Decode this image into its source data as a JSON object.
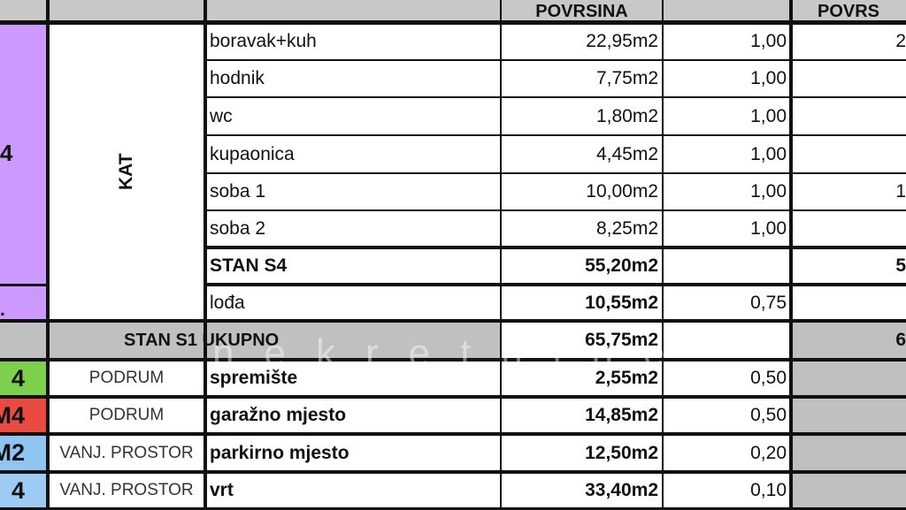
{
  "header": {
    "col_povrsina": "POVRSINA",
    "col_povrsina_partial": "POVRS"
  },
  "colors": {
    "header_bg": "#c8c8c8",
    "purple": "#cc99ff",
    "green": "#7dcf4e",
    "red": "#ea4a42",
    "blue": "#8fc5f0",
    "light_blue": "#9ecbf2",
    "total_bg": "#c0c0c0"
  },
  "group": {
    "etaza": "KAT",
    "stan_label": "4",
    "stan_label2": "."
  },
  "rooms": [
    {
      "name": "boravak+kuh",
      "area": "22,95m2",
      "coef": "1,00",
      "net": "2"
    },
    {
      "name": "hodnik",
      "area": "7,75m2",
      "coef": "1,00",
      "net": ""
    },
    {
      "name": "wc",
      "area": "1,80m2",
      "coef": "1,00",
      "net": ""
    },
    {
      "name": "kupaonica",
      "area": "4,45m2",
      "coef": "1,00",
      "net": ""
    },
    {
      "name": "soba 1",
      "area": "10,00m2",
      "coef": "1,00",
      "net": "1"
    },
    {
      "name": "soba 2",
      "area": "8,25m2",
      "coef": "1,00",
      "net": ""
    },
    {
      "name": "STAN S4",
      "area": "55,20m2",
      "coef": "",
      "net": "5"
    },
    {
      "name": "lođa",
      "area": "10,55m2",
      "coef": "0,75",
      "net": ""
    }
  ],
  "total": {
    "label": "STAN S1 UKUPNO",
    "area": "65,75m2",
    "coef": "",
    "net": "6"
  },
  "extras": [
    {
      "code": "4",
      "etaza": "PODRUM",
      "name": "spremište",
      "area": "2,55m2",
      "coef": "0,50"
    },
    {
      "code": "M4",
      "etaza": "PODRUM",
      "name": "garažno mjesto",
      "area": "14,85m2",
      "coef": "0,50"
    },
    {
      "code": "M2",
      "etaza": "VANJ. PROSTOR",
      "name": "parkirno mjesto",
      "area": "12,50m2",
      "coef": "0,20"
    },
    {
      "code": "4",
      "etaza": "VANJ. PROSTOR",
      "name": "vrt",
      "area": "33,40m2",
      "coef": "0,10"
    }
  ],
  "watermark": "nekretnine"
}
